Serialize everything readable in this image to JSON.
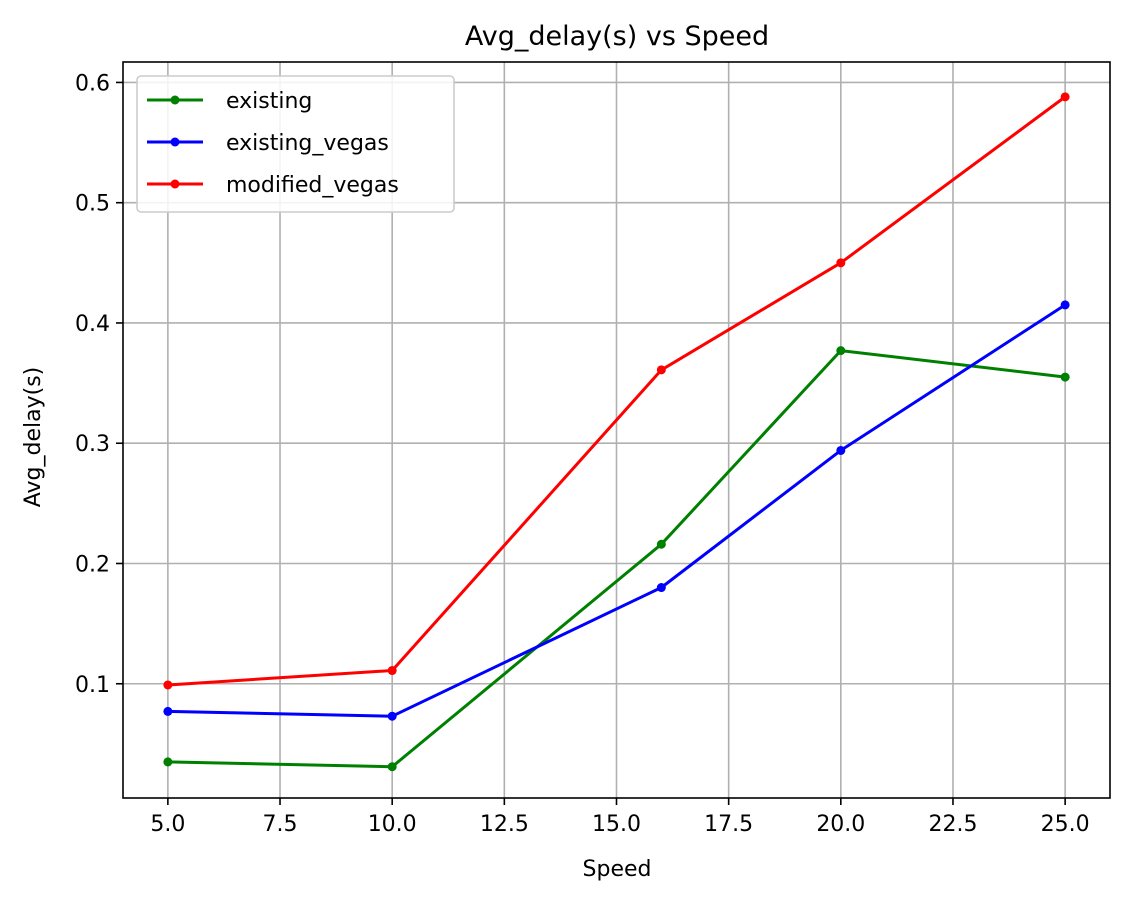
{
  "chart_data": {
    "type": "line",
    "title": "Avg_delay(s) vs Speed",
    "xlabel": "Speed",
    "ylabel": "Avg_delay(s)",
    "xlim": [
      4.0,
      26.0
    ],
    "ylim": [
      0.005,
      0.617
    ],
    "xticks": [
      5.0,
      7.5,
      10.0,
      12.5,
      15.0,
      17.5,
      20.0,
      22.5,
      25.0
    ],
    "xtick_labels": [
      "5.0",
      "7.5",
      "10.0",
      "12.5",
      "15.0",
      "17.5",
      "20.0",
      "22.5",
      "25.0"
    ],
    "yticks": [
      0.1,
      0.2,
      0.3,
      0.4,
      0.5,
      0.6
    ],
    "ytick_labels": [
      "0.1",
      "0.2",
      "0.3",
      "0.4",
      "0.5",
      "0.6"
    ],
    "grid": true,
    "legend_position": "top-left",
    "x": [
      5,
      10,
      16,
      20,
      25
    ],
    "series": [
      {
        "name": "existing",
        "color": "#008000",
        "values": [
          0.035,
          0.031,
          0.216,
          0.377,
          0.355
        ]
      },
      {
        "name": "existing_vegas",
        "color": "#0000ff",
        "values": [
          0.077,
          0.073,
          0.18,
          0.294,
          0.415
        ]
      },
      {
        "name": "modified_vegas",
        "color": "#ff0000",
        "values": [
          0.099,
          0.111,
          0.361,
          0.45,
          0.588
        ]
      }
    ]
  }
}
